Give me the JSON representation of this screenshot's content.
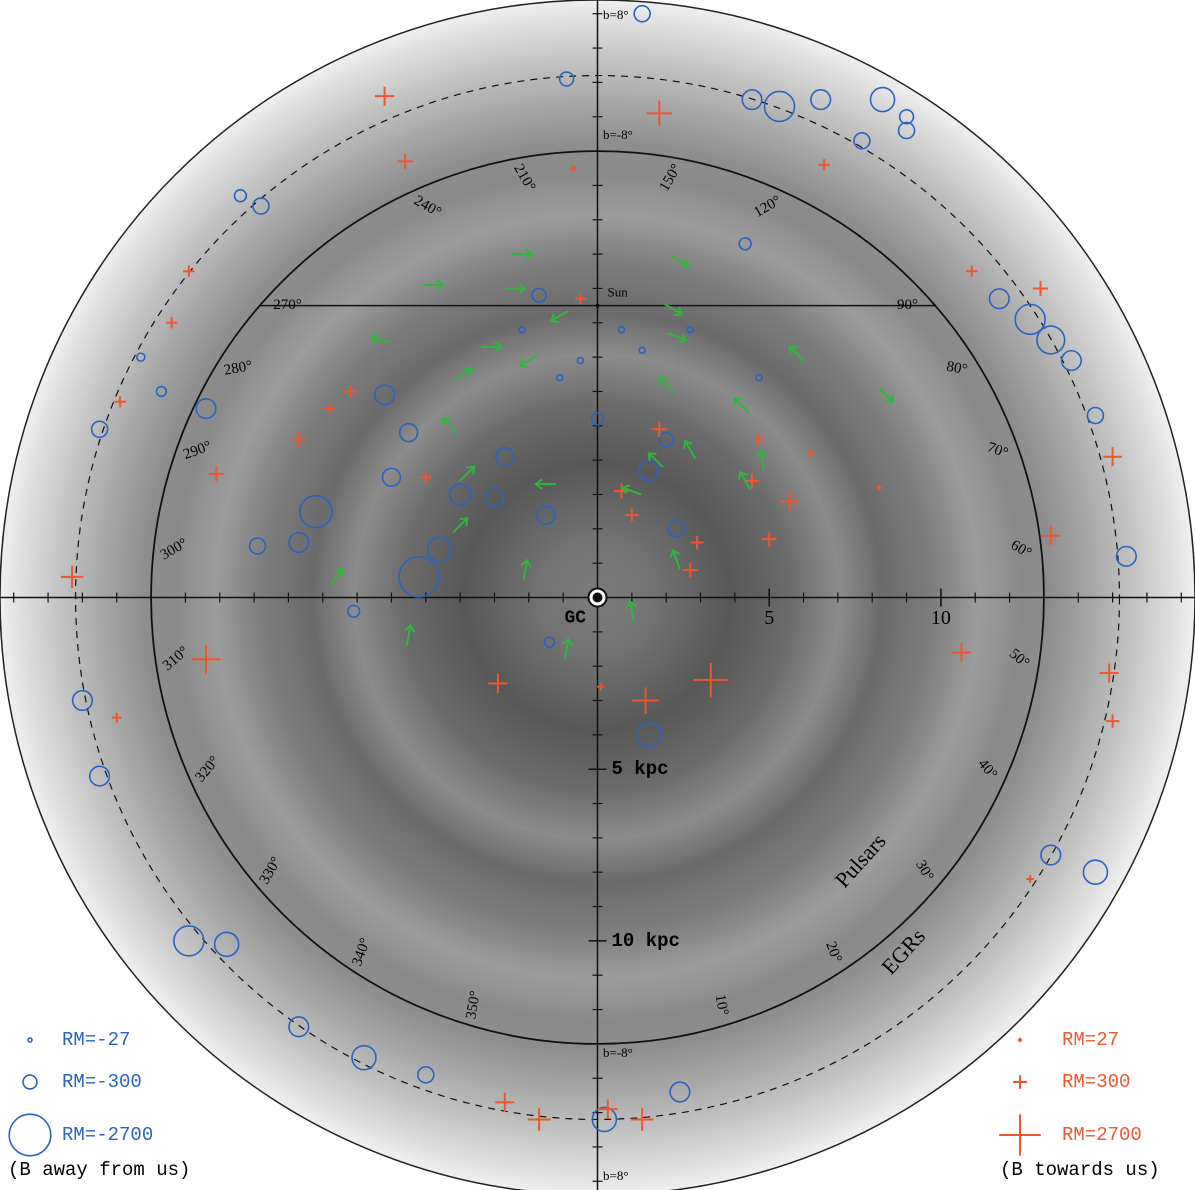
{
  "chart_data": {
    "type": "scatter",
    "xlim": [
      -17.4,
      17.4
    ],
    "ylim": [
      -17.4,
      17.4
    ],
    "xticks": [
      5,
      10
    ],
    "yticks": [
      {
        "value": -5,
        "label": "5 kpc"
      },
      {
        "value": -10,
        "label": "10 kpc"
      }
    ],
    "center_label": "GC",
    "sun": {
      "label": "Sun",
      "x": 0,
      "y": 8.5
    },
    "region_labels": [
      "Pulsars",
      "EGRs"
    ],
    "b_labels": [
      "b=8°",
      "b=-8°",
      "b=-8°",
      "b=8°"
    ],
    "longitudes": [
      {
        "value": 210,
        "label": "210°"
      },
      {
        "value": 240,
        "label": "240°"
      },
      {
        "value": 270,
        "label": "270°"
      },
      {
        "value": 280,
        "label": "280°"
      },
      {
        "value": 290,
        "label": "290°"
      },
      {
        "value": 300,
        "label": "300°"
      },
      {
        "value": 310,
        "label": "310°"
      },
      {
        "value": 320,
        "label": "320°"
      },
      {
        "value": 330,
        "label": "330°"
      },
      {
        "value": 340,
        "label": "340°"
      },
      {
        "value": 350,
        "label": "350°"
      },
      {
        "value": 10,
        "label": "10°"
      },
      {
        "value": 20,
        "label": "20°"
      },
      {
        "value": 30,
        "label": "30°"
      },
      {
        "value": 40,
        "label": "40°"
      },
      {
        "value": 50,
        "label": "50°"
      },
      {
        "value": 60,
        "label": "60°"
      },
      {
        "value": 70,
        "label": "70°"
      },
      {
        "value": 80,
        "label": "80°"
      },
      {
        "value": 90,
        "label": "90°"
      },
      {
        "value": 120,
        "label": "120°"
      },
      {
        "value": 150,
        "label": "150°"
      }
    ],
    "series": [
      {
        "color": "#2a63c1",
        "marker": "circle",
        "x": [
          -5.2,
          -8.2,
          -4.6,
          -8.7,
          -11.4,
          -6.2,
          -5.5,
          -2.7,
          -1.5,
          1.5,
          2.3,
          1.5,
          -1.4,
          -7.1,
          -9.9,
          0,
          -1.7,
          4.3,
          5.3,
          6.5,
          8.3,
          4.5,
          9.0,
          7.7,
          12.6,
          13.2,
          11.7,
          13.8,
          14.5,
          15.4,
          14.5,
          13.2,
          -14.5,
          -15.0,
          -14.5,
          -11.9,
          -10.8,
          -8.7,
          -6.8,
          -5.0,
          0.2,
          2.4,
          1.3,
          -0.9,
          -9.8,
          -10.4,
          0.7,
          1.3,
          -0.5,
          -2.2,
          -1.1,
          2.7,
          4.7,
          -4.0,
          -3.0,
          2.0,
          -6.0,
          -12.7,
          -13.3,
          9.0
        ],
        "y": [
          0.6,
          2.5,
          1.4,
          1.6,
          5.5,
          5.9,
          4.8,
          4.1,
          2.4,
          3.7,
          2.0,
          -4.0,
          -1.3,
          -0.4,
          1.5,
          5.2,
          8.8,
          10.3,
          14.3,
          14.5,
          14.5,
          14.5,
          13.6,
          13.3,
          8.1,
          7.5,
          8.7,
          6.9,
          5.3,
          1.2,
          -8.0,
          -7.5,
          4.9,
          -3.0,
          -5.2,
          -10.0,
          -10.1,
          -12.5,
          -13.4,
          -13.9,
          -15.2,
          -14.4,
          17.0,
          15.1,
          11.4,
          11.7,
          7.8,
          7.2,
          6.9,
          7.8,
          6.4,
          7.8,
          6.4,
          3.0,
          2.9,
          4.6,
          3.5,
          6.0,
          7.0,
          14.0
        ],
        "rm": [
          -2500,
          -1600,
          -900,
          -600,
          -600,
          -600,
          -500,
          -500,
          -500,
          -600,
          -400,
          -900,
          -150,
          -220,
          -400,
          -220,
          -300,
          -220,
          -1400,
          -600,
          -900,
          -600,
          -400,
          -400,
          -1400,
          -1200,
          -600,
          -600,
          -400,
          -600,
          -900,
          -600,
          -400,
          -600,
          -600,
          -1400,
          -900,
          -600,
          -900,
          -400,
          -900,
          -600,
          -400,
          -300,
          -400,
          -220,
          -56,
          -56,
          -56,
          -56,
          -56,
          -56,
          -56,
          -700,
          -500,
          -300,
          -500,
          -150,
          -100,
          -300
        ]
      },
      {
        "color": "#f0552d",
        "marker": "plus",
        "x": [
          1.8,
          3.3,
          1.4,
          -2.9,
          -11.4,
          10.6,
          14.9,
          13.2,
          15.0,
          -6.2,
          -5.6,
          -15.3,
          -1.7,
          1.3,
          -2.7,
          5.6,
          5.0,
          4.5,
          1.8,
          0.7,
          -0.5,
          -8.7,
          -7.2,
          -11.1,
          -7.8,
          12.9,
          10.9,
          15.0,
          -11.9,
          -13.9,
          2.7,
          4.7,
          6.6,
          12.6,
          0.1,
          6.2,
          8.2,
          -5.0,
          2.9,
          1.0,
          -14.0,
          0.3,
          -12.4,
          -0.7
        ],
        "y": [
          14.1,
          -2.4,
          -3.0,
          -2.5,
          -1.8,
          -1.6,
          -2.2,
          1.8,
          4.1,
          14.6,
          12.7,
          0.6,
          -15.2,
          -15.2,
          -14.7,
          2.8,
          1.7,
          3.4,
          4.9,
          3.1,
          8.7,
          4.6,
          6.0,
          3.6,
          5.5,
          9.0,
          9.5,
          -3.6,
          9.5,
          5.7,
          0.8,
          4.6,
          12.6,
          -8.2,
          -2.6,
          4.2,
          3.2,
          3.5,
          1.6,
          2.4,
          -3.5,
          -14.9,
          8.0,
          12.5
        ],
        "rm": [
          1000,
          1800,
          1100,
          570,
          1300,
          570,
          570,
          570,
          570,
          570,
          360,
          800,
          800,
          800,
          570,
          570,
          360,
          360,
          360,
          360,
          200,
          360,
          280,
          360,
          200,
          360,
          200,
          280,
          200,
          200,
          360,
          200,
          200,
          90,
          90,
          90,
          50,
          200,
          280,
          280,
          150,
          600,
          200,
          50
        ]
      }
    ],
    "arrows": {
      "color": "#2db83b",
      "x": [
        -2.2,
        -4.8,
        -2.4,
        2.4,
        2.2,
        -1.1,
        -6.3,
        -3.1,
        -2.0,
        -3.9,
        2.3,
        5.8,
        8.4,
        4.2,
        2.0,
        -4.3,
        2.7,
        1.7,
        1.0,
        -1.5,
        -3.8,
        -4.0,
        -7.6,
        -2.1,
        -5.5,
        -0.9,
        1.0,
        2.3,
        4.3,
        4.8
      ],
      "y": [
        10.0,
        9.1,
        9.0,
        9.8,
        8.4,
        8.2,
        7.5,
        7.3,
        6.9,
        6.5,
        7.6,
        7.1,
        5.9,
        5.6,
        6.2,
        5.0,
        4.3,
        4.0,
        3.1,
        3.3,
        3.6,
        2.1,
        0.6,
        0.8,
        -1.1,
        -1.5,
        -0.4,
        1.1,
        3.4,
        4.0
      ],
      "angle": [
        0,
        0,
        0,
        -30,
        -30,
        -150,
        165,
        0,
        -150,
        35,
        -20,
        135,
        -45,
        135,
        135,
        135,
        120,
        135,
        160,
        180,
        45,
        45,
        55,
        80,
        80,
        80,
        100,
        110,
        120,
        100
      ]
    },
    "legend": [
      {
        "label": "RM=-27",
        "rm": -27
      },
      {
        "label": "RM=-300",
        "rm": -300
      },
      {
        "label": "RM=-2700",
        "rm": -2700
      },
      {
        "label": "RM=27",
        "rm": 27
      },
      {
        "label": "RM=300",
        "rm": 300
      },
      {
        "label": "RM=2700",
        "rm": 2700
      }
    ],
    "legend_notes": [
      "(B away from us)",
      "(B towards us)"
    ]
  }
}
